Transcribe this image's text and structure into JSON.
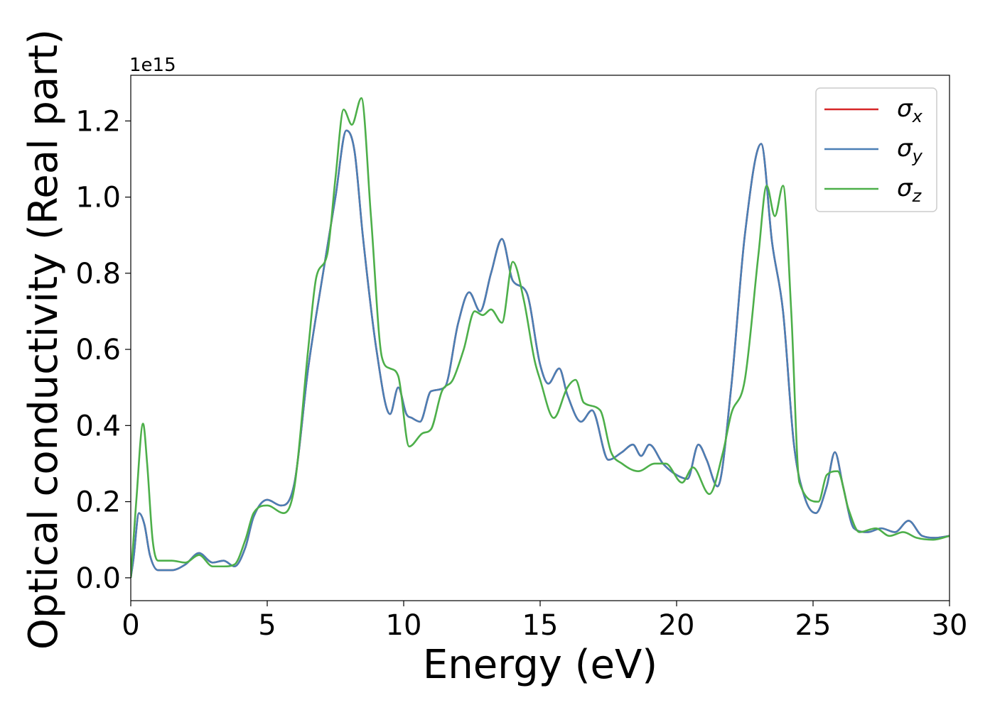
{
  "chart_data": {
    "type": "line",
    "title": "",
    "xlabel": "Energy (eV)",
    "ylabel": "Optical conductivity (Real part)",
    "y_multiplier_label": "1e15",
    "xlim": [
      0,
      30
    ],
    "ylim": [
      -0.06,
      1.32
    ],
    "x_ticks": [
      0,
      5,
      10,
      15,
      20,
      25,
      30
    ],
    "x_tick_labels": [
      "0",
      "5",
      "10",
      "15",
      "20",
      "25",
      "30"
    ],
    "y_ticks": [
      0.0,
      0.2,
      0.4,
      0.6,
      0.8,
      1.0,
      1.2
    ],
    "y_tick_labels": [
      "0.0",
      "0.2",
      "0.4",
      "0.6",
      "0.8",
      "1.0",
      "1.2"
    ],
    "grid": false,
    "legend_position": "top-right",
    "series": [
      {
        "name": "σx",
        "legend_symbol": "σ",
        "legend_subscript": "x",
        "color": "#d62728",
        "points": [
          [
            0,
            0.0
          ],
          [
            0.1,
            0.05
          ],
          [
            0.3,
            0.17
          ],
          [
            0.5,
            0.14
          ],
          [
            0.7,
            0.06
          ],
          [
            1.0,
            0.02
          ],
          [
            1.5,
            0.02
          ],
          [
            2.0,
            0.035
          ],
          [
            2.5,
            0.065
          ],
          [
            3.0,
            0.04
          ],
          [
            3.4,
            0.045
          ],
          [
            3.8,
            0.03
          ],
          [
            4.2,
            0.08
          ],
          [
            4.5,
            0.16
          ],
          [
            5.0,
            0.205
          ],
          [
            5.5,
            0.19
          ],
          [
            6.0,
            0.25
          ],
          [
            6.5,
            0.55
          ],
          [
            7.0,
            0.78
          ],
          [
            7.5,
            1.0
          ],
          [
            7.9,
            1.175
          ],
          [
            8.2,
            1.12
          ],
          [
            8.5,
            0.9
          ],
          [
            9.0,
            0.6
          ],
          [
            9.5,
            0.43
          ],
          [
            9.8,
            0.5
          ],
          [
            10.1,
            0.43
          ],
          [
            10.3,
            0.42
          ],
          [
            10.6,
            0.41
          ],
          [
            11.0,
            0.49
          ],
          [
            11.5,
            0.5
          ],
          [
            12.0,
            0.67
          ],
          [
            12.4,
            0.75
          ],
          [
            12.8,
            0.7
          ],
          [
            13.2,
            0.8
          ],
          [
            13.6,
            0.89
          ],
          [
            14.0,
            0.78
          ],
          [
            14.5,
            0.75
          ],
          [
            15.0,
            0.56
          ],
          [
            15.3,
            0.51
          ],
          [
            15.7,
            0.55
          ],
          [
            16.0,
            0.48
          ],
          [
            16.5,
            0.41
          ],
          [
            16.9,
            0.44
          ],
          [
            17.5,
            0.31
          ],
          [
            18.0,
            0.33
          ],
          [
            18.4,
            0.35
          ],
          [
            18.7,
            0.32
          ],
          [
            19.0,
            0.35
          ],
          [
            19.5,
            0.3
          ],
          [
            20.0,
            0.27
          ],
          [
            20.4,
            0.26
          ],
          [
            20.8,
            0.35
          ],
          [
            21.1,
            0.31
          ],
          [
            21.5,
            0.24
          ],
          [
            22.0,
            0.5
          ],
          [
            22.5,
            0.9
          ],
          [
            23.1,
            1.14
          ],
          [
            23.5,
            0.88
          ],
          [
            23.9,
            0.7
          ],
          [
            24.3,
            0.35
          ],
          [
            24.7,
            0.21
          ],
          [
            25.1,
            0.17
          ],
          [
            25.5,
            0.24
          ],
          [
            25.8,
            0.33
          ],
          [
            26.1,
            0.24
          ],
          [
            26.5,
            0.13
          ],
          [
            27.0,
            0.12
          ],
          [
            27.5,
            0.13
          ],
          [
            28.0,
            0.12
          ],
          [
            28.5,
            0.15
          ],
          [
            29.0,
            0.11
          ],
          [
            29.5,
            0.105
          ],
          [
            30.0,
            0.11
          ]
        ]
      },
      {
        "name": "σy",
        "legend_symbol": "σ",
        "legend_subscript": "y",
        "color": "#4a7fb5",
        "points": [
          [
            0,
            0.0
          ],
          [
            0.1,
            0.05
          ],
          [
            0.3,
            0.17
          ],
          [
            0.5,
            0.14
          ],
          [
            0.7,
            0.06
          ],
          [
            1.0,
            0.02
          ],
          [
            1.5,
            0.02
          ],
          [
            2.0,
            0.035
          ],
          [
            2.5,
            0.065
          ],
          [
            3.0,
            0.04
          ],
          [
            3.4,
            0.045
          ],
          [
            3.8,
            0.03
          ],
          [
            4.2,
            0.08
          ],
          [
            4.5,
            0.16
          ],
          [
            5.0,
            0.205
          ],
          [
            5.5,
            0.19
          ],
          [
            6.0,
            0.25
          ],
          [
            6.5,
            0.55
          ],
          [
            7.0,
            0.78
          ],
          [
            7.5,
            1.0
          ],
          [
            7.9,
            1.175
          ],
          [
            8.2,
            1.12
          ],
          [
            8.5,
            0.9
          ],
          [
            9.0,
            0.6
          ],
          [
            9.5,
            0.43
          ],
          [
            9.8,
            0.5
          ],
          [
            10.1,
            0.43
          ],
          [
            10.3,
            0.42
          ],
          [
            10.6,
            0.41
          ],
          [
            11.0,
            0.49
          ],
          [
            11.5,
            0.5
          ],
          [
            12.0,
            0.67
          ],
          [
            12.4,
            0.75
          ],
          [
            12.8,
            0.7
          ],
          [
            13.2,
            0.8
          ],
          [
            13.6,
            0.89
          ],
          [
            14.0,
            0.78
          ],
          [
            14.5,
            0.75
          ],
          [
            15.0,
            0.56
          ],
          [
            15.3,
            0.51
          ],
          [
            15.7,
            0.55
          ],
          [
            16.0,
            0.48
          ],
          [
            16.5,
            0.41
          ],
          [
            16.9,
            0.44
          ],
          [
            17.5,
            0.31
          ],
          [
            18.0,
            0.33
          ],
          [
            18.4,
            0.35
          ],
          [
            18.7,
            0.32
          ],
          [
            19.0,
            0.35
          ],
          [
            19.5,
            0.3
          ],
          [
            20.0,
            0.27
          ],
          [
            20.4,
            0.26
          ],
          [
            20.8,
            0.35
          ],
          [
            21.1,
            0.31
          ],
          [
            21.5,
            0.24
          ],
          [
            22.0,
            0.5
          ],
          [
            22.5,
            0.9
          ],
          [
            23.1,
            1.14
          ],
          [
            23.5,
            0.88
          ],
          [
            23.9,
            0.7
          ],
          [
            24.3,
            0.35
          ],
          [
            24.7,
            0.21
          ],
          [
            25.1,
            0.17
          ],
          [
            25.5,
            0.24
          ],
          [
            25.8,
            0.33
          ],
          [
            26.1,
            0.24
          ],
          [
            26.5,
            0.13
          ],
          [
            27.0,
            0.12
          ],
          [
            27.5,
            0.13
          ],
          [
            28.0,
            0.12
          ],
          [
            28.5,
            0.15
          ],
          [
            29.0,
            0.11
          ],
          [
            29.5,
            0.105
          ],
          [
            30.0,
            0.11
          ]
        ]
      },
      {
        "name": "σz",
        "legend_symbol": "σ",
        "legend_subscript": "z",
        "color": "#4daf4a",
        "points": [
          [
            0,
            0.0
          ],
          [
            0.2,
            0.2
          ],
          [
            0.45,
            0.405
          ],
          [
            0.6,
            0.3
          ],
          [
            0.8,
            0.1
          ],
          [
            1.0,
            0.045
          ],
          [
            1.5,
            0.045
          ],
          [
            2.0,
            0.04
          ],
          [
            2.5,
            0.06
          ],
          [
            3.0,
            0.03
          ],
          [
            3.4,
            0.03
          ],
          [
            3.8,
            0.035
          ],
          [
            4.2,
            0.1
          ],
          [
            4.5,
            0.17
          ],
          [
            5.0,
            0.19
          ],
          [
            5.6,
            0.17
          ],
          [
            6.0,
            0.24
          ],
          [
            6.5,
            0.6
          ],
          [
            6.8,
            0.79
          ],
          [
            7.2,
            0.85
          ],
          [
            7.5,
            1.05
          ],
          [
            7.8,
            1.23
          ],
          [
            8.1,
            1.19
          ],
          [
            8.45,
            1.26
          ],
          [
            8.8,
            0.95
          ],
          [
            9.2,
            0.58
          ],
          [
            9.5,
            0.55
          ],
          [
            9.8,
            0.53
          ],
          [
            10.2,
            0.345
          ],
          [
            10.7,
            0.38
          ],
          [
            11.0,
            0.39
          ],
          [
            11.4,
            0.49
          ],
          [
            11.8,
            0.52
          ],
          [
            12.2,
            0.6
          ],
          [
            12.6,
            0.7
          ],
          [
            12.9,
            0.69
          ],
          [
            13.2,
            0.705
          ],
          [
            13.6,
            0.67
          ],
          [
            14.0,
            0.83
          ],
          [
            14.4,
            0.73
          ],
          [
            14.8,
            0.57
          ],
          [
            15.0,
            0.52
          ],
          [
            15.5,
            0.42
          ],
          [
            16.0,
            0.5
          ],
          [
            16.3,
            0.52
          ],
          [
            16.6,
            0.46
          ],
          [
            17.2,
            0.44
          ],
          [
            17.6,
            0.33
          ],
          [
            18.0,
            0.3
          ],
          [
            18.6,
            0.28
          ],
          [
            19.2,
            0.3
          ],
          [
            19.6,
            0.3
          ],
          [
            20.2,
            0.25
          ],
          [
            20.6,
            0.29
          ],
          [
            21.2,
            0.22
          ],
          [
            21.7,
            0.33
          ],
          [
            22.0,
            0.43
          ],
          [
            22.5,
            0.52
          ],
          [
            23.0,
            0.85
          ],
          [
            23.3,
            1.03
          ],
          [
            23.6,
            0.95
          ],
          [
            23.9,
            1.03
          ],
          [
            24.2,
            0.7
          ],
          [
            24.5,
            0.25
          ],
          [
            25.2,
            0.2
          ],
          [
            25.5,
            0.27
          ],
          [
            25.9,
            0.28
          ],
          [
            26.3,
            0.18
          ],
          [
            26.7,
            0.12
          ],
          [
            27.3,
            0.13
          ],
          [
            27.8,
            0.11
          ],
          [
            28.3,
            0.12
          ],
          [
            28.8,
            0.105
          ],
          [
            29.4,
            0.1
          ],
          [
            30.0,
            0.11
          ]
        ]
      }
    ]
  }
}
